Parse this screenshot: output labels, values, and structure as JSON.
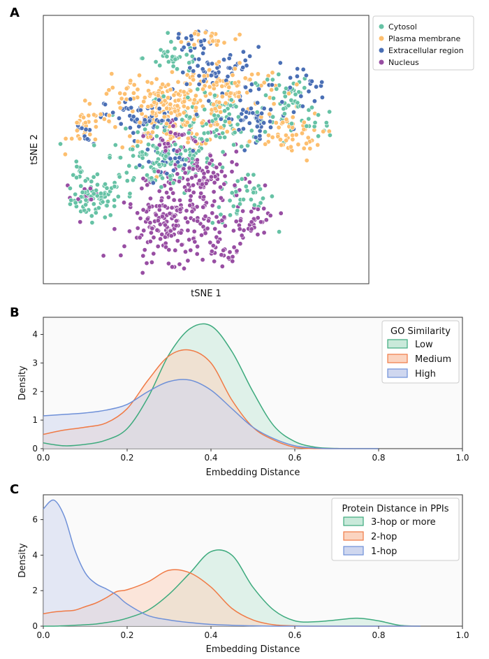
{
  "chart_data": [
    {
      "panel": "A",
      "type": "scatter",
      "xlabel": "tSNE 1",
      "ylabel": "tSNE 2",
      "legend_placement": "outside-top-right",
      "series": [
        {
          "name": "Cytosol",
          "color": "#66c2a5"
        },
        {
          "name": "Plasma membrane",
          "color": "#fdbf6f"
        },
        {
          "name": "Extracellular region",
          "color": "#4a6fb5"
        },
        {
          "name": "Nucleus",
          "color": "#984ea3"
        }
      ],
      "clusters": [
        {
          "series": "Cytosol",
          "x": 0.15,
          "y": 0.3,
          "sx": 0.04,
          "sy": 0.035,
          "n": 70
        },
        {
          "series": "Cytosol",
          "x": 0.1,
          "y": 0.4,
          "sx": 0.02,
          "sy": 0.02,
          "n": 12
        },
        {
          "series": "Cytosol",
          "x": 0.35,
          "y": 0.45,
          "sx": 0.09,
          "sy": 0.06,
          "n": 120
        },
        {
          "series": "Cytosol",
          "x": 0.55,
          "y": 0.62,
          "sx": 0.12,
          "sy": 0.06,
          "n": 110
        },
        {
          "series": "Cytosol",
          "x": 0.62,
          "y": 0.3,
          "sx": 0.05,
          "sy": 0.05,
          "n": 40
        },
        {
          "series": "Cytosol",
          "x": 0.4,
          "y": 0.86,
          "sx": 0.05,
          "sy": 0.03,
          "n": 30
        },
        {
          "series": "Cytosol",
          "x": 0.75,
          "y": 0.7,
          "sx": 0.04,
          "sy": 0.05,
          "n": 30
        },
        {
          "series": "Cytosol",
          "x": 0.85,
          "y": 0.6,
          "sx": 0.03,
          "sy": 0.03,
          "n": 15
        },
        {
          "series": "Plasma membrane",
          "x": 0.12,
          "y": 0.58,
          "sx": 0.03,
          "sy": 0.04,
          "n": 30
        },
        {
          "series": "Plasma membrane",
          "x": 0.4,
          "y": 0.63,
          "sx": 0.1,
          "sy": 0.06,
          "n": 160
        },
        {
          "series": "Plasma membrane",
          "x": 0.55,
          "y": 0.75,
          "sx": 0.1,
          "sy": 0.05,
          "n": 90
        },
        {
          "series": "Plasma membrane",
          "x": 0.52,
          "y": 0.94,
          "sx": 0.04,
          "sy": 0.015,
          "n": 25
        },
        {
          "series": "Plasma membrane",
          "x": 0.75,
          "y": 0.55,
          "sx": 0.06,
          "sy": 0.05,
          "n": 50
        },
        {
          "series": "Plasma membrane",
          "x": 0.3,
          "y": 0.72,
          "sx": 0.06,
          "sy": 0.04,
          "n": 40
        },
        {
          "series": "Extracellular region",
          "x": 0.3,
          "y": 0.62,
          "sx": 0.06,
          "sy": 0.04,
          "n": 60
        },
        {
          "series": "Extracellular region",
          "x": 0.55,
          "y": 0.8,
          "sx": 0.07,
          "sy": 0.05,
          "n": 60
        },
        {
          "series": "Extracellular region",
          "x": 0.47,
          "y": 0.93,
          "sx": 0.03,
          "sy": 0.02,
          "n": 18
        },
        {
          "series": "Extracellular region",
          "x": 0.65,
          "y": 0.62,
          "sx": 0.06,
          "sy": 0.04,
          "n": 50
        },
        {
          "series": "Extracellular region",
          "x": 0.8,
          "y": 0.75,
          "sx": 0.04,
          "sy": 0.04,
          "n": 20
        },
        {
          "series": "Extracellular region",
          "x": 0.4,
          "y": 0.45,
          "sx": 0.05,
          "sy": 0.03,
          "n": 25
        },
        {
          "series": "Extracellular region",
          "x": 0.12,
          "y": 0.55,
          "sx": 0.02,
          "sy": 0.02,
          "n": 10
        },
        {
          "series": "Nucleus",
          "x": 0.4,
          "y": 0.2,
          "sx": 0.08,
          "sy": 0.07,
          "n": 190
        },
        {
          "series": "Nucleus",
          "x": 0.48,
          "y": 0.38,
          "sx": 0.07,
          "sy": 0.06,
          "n": 110
        },
        {
          "series": "Nucleus",
          "x": 0.55,
          "y": 0.08,
          "sx": 0.025,
          "sy": 0.02,
          "n": 20
        },
        {
          "series": "Nucleus",
          "x": 0.65,
          "y": 0.22,
          "sx": 0.04,
          "sy": 0.03,
          "n": 30
        },
        {
          "series": "Nucleus",
          "x": 0.12,
          "y": 0.33,
          "sx": 0.02,
          "sy": 0.02,
          "n": 10
        },
        {
          "series": "Nucleus",
          "x": 0.4,
          "y": 0.55,
          "sx": 0.06,
          "sy": 0.04,
          "n": 40
        }
      ]
    },
    {
      "panel": "B",
      "type": "area",
      "xlabel": "Embedding Distance",
      "ylabel": "Density",
      "xlim": [
        0,
        1
      ],
      "ylim": [
        0,
        4.6
      ],
      "xticks": [
        "0.0",
        "0.2",
        "0.4",
        "0.6",
        "0.8",
        "1.0"
      ],
      "yticks": [
        "0",
        "1",
        "2",
        "3",
        "4"
      ],
      "legend_title": "GO Similarity",
      "legend_placement": "upper right",
      "x": [
        0,
        0.05,
        0.1,
        0.15,
        0.2,
        0.25,
        0.3,
        0.35,
        0.4,
        0.45,
        0.5,
        0.55,
        0.6,
        0.65,
        0.7,
        0.75,
        0.8
      ],
      "series": [
        {
          "name": "Low",
          "color": "#3daa7d",
          "fill": "#c9e9da",
          "values": [
            0.2,
            0.1,
            0.15,
            0.3,
            0.7,
            1.8,
            3.3,
            4.2,
            4.3,
            3.4,
            2.0,
            0.8,
            0.25,
            0.05,
            0.01,
            0,
            0
          ]
        },
        {
          "name": "Medium",
          "color": "#f07a45",
          "fill": "#fbd4c0",
          "values": [
            0.5,
            0.65,
            0.75,
            0.9,
            1.4,
            2.4,
            3.25,
            3.45,
            3.0,
            1.7,
            0.75,
            0.3,
            0.05,
            0,
            0,
            0,
            0
          ]
        },
        {
          "name": "High",
          "color": "#6e90d8",
          "fill": "#cfd7ef",
          "values": [
            1.15,
            1.2,
            1.25,
            1.35,
            1.55,
            2.0,
            2.35,
            2.4,
            2.05,
            1.4,
            0.75,
            0.35,
            0.1,
            0.02,
            0,
            0,
            0
          ]
        }
      ]
    },
    {
      "panel": "C",
      "type": "area",
      "xlabel": "Embedding Distance",
      "ylabel": "Density",
      "xlim": [
        0,
        1
      ],
      "ylim": [
        0,
        7.4
      ],
      "xticks": [
        "0.0",
        "0.2",
        "0.4",
        "0.6",
        "0.8",
        "1.0"
      ],
      "yticks": [
        "0",
        "2",
        "4",
        "6"
      ],
      "legend_title": "Protein Distance in PPIs",
      "legend_placement": "upper right",
      "x": [
        0,
        0.025,
        0.05,
        0.075,
        0.1,
        0.125,
        0.15,
        0.175,
        0.2,
        0.25,
        0.3,
        0.35,
        0.4,
        0.45,
        0.5,
        0.55,
        0.6,
        0.65,
        0.7,
        0.75,
        0.8,
        0.85,
        0.9
      ],
      "series": [
        {
          "name": "3-hop or more",
          "color": "#3daa7d",
          "fill": "#c9e9da",
          "values": [
            0,
            0,
            0.02,
            0.05,
            0.08,
            0.12,
            0.2,
            0.3,
            0.45,
            0.9,
            1.8,
            3.0,
            4.2,
            4.0,
            2.2,
            0.9,
            0.3,
            0.25,
            0.35,
            0.45,
            0.3,
            0.05,
            0
          ]
        },
        {
          "name": "2-hop",
          "color": "#f07a45",
          "fill": "#fbd4c0",
          "values": [
            0.7,
            0.8,
            0.85,
            0.9,
            1.1,
            1.3,
            1.6,
            1.95,
            2.05,
            2.5,
            3.15,
            3.0,
            2.2,
            1.0,
            0.35,
            0.08,
            0.02,
            0,
            0,
            0,
            0,
            0,
            0
          ]
        },
        {
          "name": "1-hop",
          "color": "#6e90d8",
          "fill": "#cfd7ef",
          "values": [
            6.6,
            7.1,
            6.2,
            4.3,
            3.0,
            2.4,
            2.1,
            1.75,
            1.25,
            0.6,
            0.35,
            0.2,
            0.1,
            0.05,
            0.02,
            0,
            0,
            0,
            0,
            0,
            0,
            0,
            0
          ]
        }
      ]
    }
  ]
}
